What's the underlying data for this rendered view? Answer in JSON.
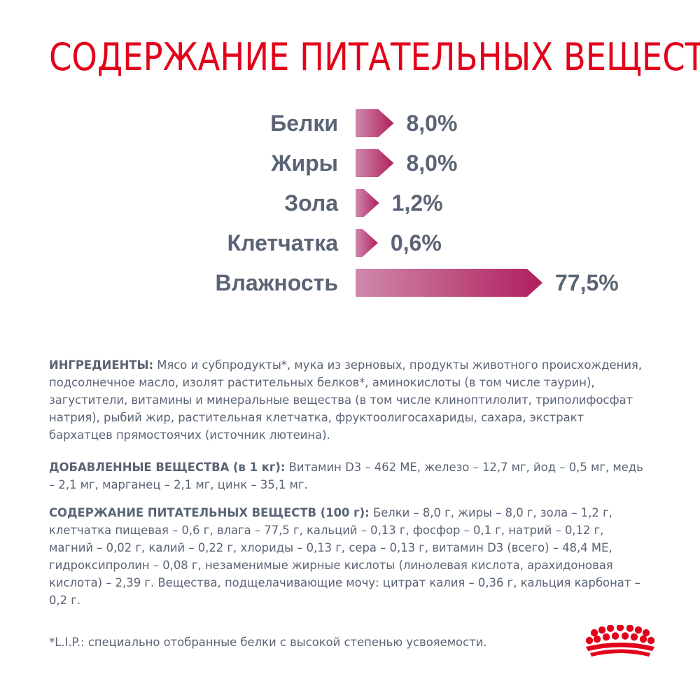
{
  "title": "СОДЕРЖАНИЕ ПИТАТЕЛЬНЫХ ВЕЩЕСТВ",
  "colors": {
    "title": "#e2001a",
    "text": "#5a6475",
    "bar_start": "#cf89ab",
    "bar_end": "#b01f5e",
    "logo": "#e2001a"
  },
  "chart_data": {
    "type": "bar",
    "orientation": "horizontal",
    "categories": [
      "Белки",
      "Жиры",
      "Зола",
      "Клетчатка",
      "Влажность"
    ],
    "values": [
      8.0,
      8.0,
      1.2,
      0.6,
      77.5
    ],
    "value_labels": [
      "8,0%",
      "8,0%",
      "1,2%",
      "0,6%",
      "77,5%"
    ],
    "title": "",
    "xlabel": "",
    "ylabel": "",
    "unit": "%",
    "grid": false
  },
  "ingredients": {
    "label": "ИНГРЕДИЕНТЫ:",
    "text": " Мясо и субпродукты*, мука из зерновых, продукты животного происхождения, подсолнечное масло, изолят растительных белков*, аминокислоты (в том числе таурин), загустители, витамины и минеральные вещества (в том числе клиноптилолит, триполифосфат натрия), рыбий жир, растительная клетчатка, фруктоолигосахариды, сахара, экстракт бархатцев прямостоячих (источник лютеина)."
  },
  "additives": {
    "label": "ДОБАВЛЕННЫЕ ВЕЩЕСТВА (в 1 кг):",
    "text": " Витамин D3 – 462 МЕ, железо – 12,7 мг, йод – 0,5 мг, медь – 2,1 мг, марганец – 2,1 мг, цинк – 35,1 мг."
  },
  "nutrients": {
    "label": "СОДЕРЖАНИЕ ПИТАТЕЛЬНЫХ ВЕЩЕСТВ (100 г):",
    "text": " Белки – 8,0 г, жиры – 8,0 г, зола – 1,2 г, клетчатка пищевая – 0,6 г, влага – 77,5 г, кальций – 0,13 г, фосфор – 0,1 г, натрий – 0,12 г, магний – 0,02 г, калий – 0,22 г, хлориды – 0,13 г, сера – 0,13 г, витамин D3 (всего) – 48,4 МЕ, гидроксипролин – 0,08 г, незаменимые жирные кислоты (линолевая кислота, арахидоновая кислота) – 2,39 г. Вещества, подщелачивающие мочу: цитрат калия – 0,36 г, кальция карбонат – 0,2 г."
  },
  "footnote": "*L.I.P.: специально отобранные белки с высокой степенью усвояемости.",
  "logo": {
    "icon": "royal-canin-crown-icon"
  }
}
